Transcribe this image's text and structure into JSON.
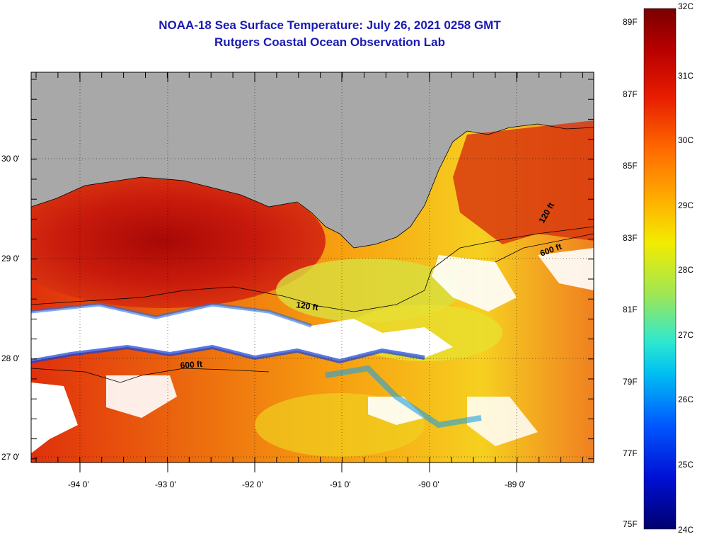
{
  "title_line1": "NOAA-18 Sea Surface Temperature:  July 26, 2021 0258 GMT",
  "title_line2": "Rutgers Coastal Ocean Observation Lab",
  "map": {
    "lon_labels": [
      "-94 0'",
      "-93 0'",
      "-92 0'",
      "-91 0'",
      "-90 0'",
      "-89 0'"
    ],
    "lat_labels": [
      "30 0'",
      "29 0'",
      "28 0'",
      "27 0'"
    ],
    "contour_labels": [
      "120 ft",
      "600 ft",
      "120 ft",
      "600 ft"
    ],
    "colors": {
      "land": "#a8a8a8",
      "cloud": "#ffffff",
      "warm": "#d82a10",
      "frame": "#000000"
    }
  },
  "colorbar": {
    "fahrenheit": [
      "89F",
      "87F",
      "85F",
      "83F",
      "81F",
      "79F",
      "77F",
      "75F"
    ],
    "celsius": [
      "32C",
      "31C",
      "30C",
      "29C",
      "28C",
      "27C",
      "26C",
      "25C",
      "24C"
    ],
    "stops": [
      "#7a0000",
      "#d40000",
      "#ff3a00",
      "#ff7a00",
      "#ffbb00",
      "#f4ef00",
      "#a6e84a",
      "#32e6c8",
      "#00c8f0",
      "#0060ff",
      "#0010d8",
      "#000080"
    ]
  }
}
